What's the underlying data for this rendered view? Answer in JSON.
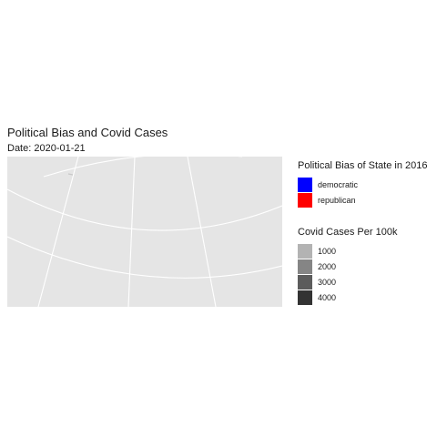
{
  "chart_data": {
    "type": "map",
    "title": "Political Bias and Covid Cases",
    "subtitle": "Date: 2020-01-21",
    "background_color": "#e5e5e5",
    "gridline_color": "#ffffff",
    "legends": {
      "bias": {
        "title": "Political Bias of State in 2016",
        "items": [
          {
            "label": "democratic",
            "color": "#0000ff"
          },
          {
            "label": "republican",
            "color": "#ff0000"
          }
        ]
      },
      "cases": {
        "title": "Covid Cases Per 100k",
        "items": [
          {
            "label": "1000",
            "color": "#b3b3b3"
          },
          {
            "label": "2000",
            "color": "#858585"
          },
          {
            "label": "3000",
            "color": "#5c5c5c"
          },
          {
            "label": "4000",
            "color": "#333333"
          }
        ]
      }
    }
  }
}
